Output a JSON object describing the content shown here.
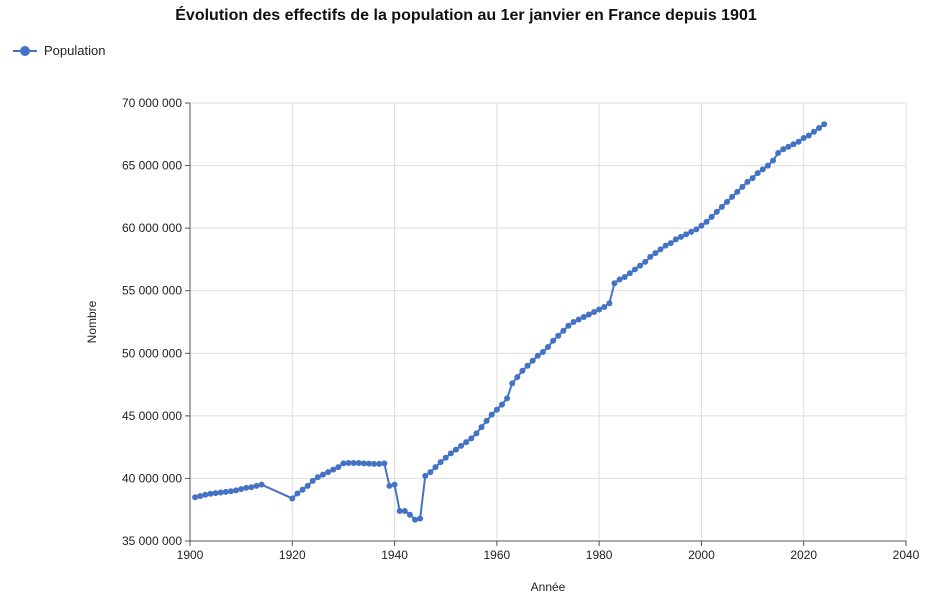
{
  "chart_data": {
    "type": "line",
    "title": "Évolution des effectifs de la population au 1er janvier en France depuis 1901",
    "xlabel": "Année",
    "ylabel": "Nombre",
    "xlim": [
      1900,
      2040
    ],
    "ylim": [
      35000000,
      70000000
    ],
    "x_ticks": [
      "1900",
      "1920",
      "1940",
      "1960",
      "1980",
      "2000",
      "2020",
      "2040"
    ],
    "y_ticks": [
      "35 000 000",
      "40 000 000",
      "45 000 000",
      "50 000 000",
      "55 000 000",
      "60 000 000",
      "65 000 000",
      "70 000 000"
    ],
    "grid": true,
    "legend_position": "top-left",
    "series": [
      {
        "name": "Population",
        "color": "#4472c4",
        "x": [
          1901,
          1902,
          1903,
          1904,
          1905,
          1906,
          1907,
          1908,
          1909,
          1910,
          1911,
          1912,
          1913,
          1914,
          1920,
          1921,
          1922,
          1923,
          1924,
          1925,
          1926,
          1927,
          1928,
          1929,
          1930,
          1931,
          1932,
          1933,
          1934,
          1935,
          1936,
          1937,
          1938,
          1939,
          1940,
          1941,
          1942,
          1943,
          1944,
          1945,
          1946,
          1947,
          1948,
          1949,
          1950,
          1951,
          1952,
          1953,
          1954,
          1955,
          1956,
          1957,
          1958,
          1959,
          1960,
          1961,
          1962,
          1963,
          1964,
          1965,
          1966,
          1967,
          1968,
          1969,
          1970,
          1971,
          1972,
          1973,
          1974,
          1975,
          1976,
          1977,
          1978,
          1979,
          1980,
          1981,
          1982,
          1983,
          1984,
          1985,
          1986,
          1987,
          1988,
          1989,
          1990,
          1991,
          1992,
          1993,
          1994,
          1995,
          1996,
          1997,
          1998,
          1999,
          2000,
          2001,
          2002,
          2003,
          2004,
          2005,
          2006,
          2007,
          2008,
          2009,
          2010,
          2011,
          2012,
          2013,
          2014,
          2015,
          2016,
          2017,
          2018,
          2019,
          2020,
          2021,
          2022,
          2023,
          2024
        ],
        "y": [
          38500000,
          38600000,
          38700000,
          38780000,
          38830000,
          38880000,
          38930000,
          38980000,
          39050000,
          39150000,
          39250000,
          39300000,
          39400000,
          39500000,
          38400000,
          38800000,
          39100000,
          39400000,
          39800000,
          40100000,
          40300000,
          40500000,
          40700000,
          40900000,
          41200000,
          41230000,
          41230000,
          41230000,
          41200000,
          41180000,
          41160000,
          41160000,
          41200000,
          39400000,
          39500000,
          37400000,
          37400000,
          37100000,
          36700000,
          36800000,
          40200000,
          40500000,
          40900000,
          41300000,
          41650000,
          42000000,
          42300000,
          42600000,
          42900000,
          43200000,
          43600000,
          44100000,
          44600000,
          45100000,
          45500000,
          45900000,
          46400000,
          47600000,
          48100000,
          48600000,
          49000000,
          49400000,
          49800000,
          50100000,
          50500000,
          51000000,
          51400000,
          51800000,
          52200000,
          52500000,
          52700000,
          52900000,
          53100000,
          53300000,
          53500000,
          53700000,
          54000000,
          55600000,
          55900000,
          56100000,
          56400000,
          56700000,
          57000000,
          57300000,
          57700000,
          58000000,
          58300000,
          58600000,
          58800000,
          59100000,
          59300000,
          59500000,
          59700000,
          59900000,
          60200000,
          60500000,
          60900000,
          61300000,
          61700000,
          62100000,
          62500000,
          62900000,
          63300000,
          63700000,
          64000000,
          64400000,
          64700000,
          65000000,
          65400000,
          66000000,
          66300000,
          66500000,
          66700000,
          66900000,
          67200000,
          67400000,
          67700000,
          68000000,
          68300000
        ]
      }
    ]
  }
}
